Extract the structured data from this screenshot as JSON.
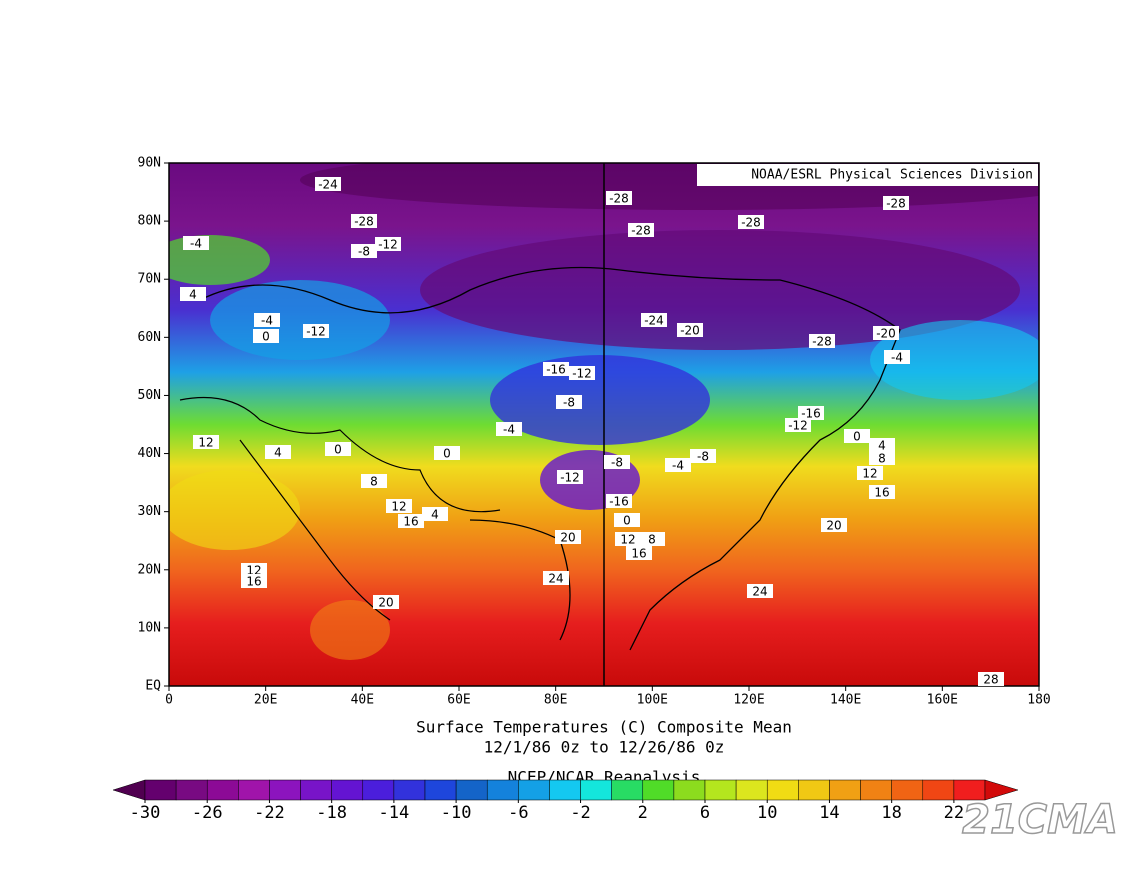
{
  "map": {
    "credit": "NOAA/ESRL Physical Sciences Division",
    "title": "Surface Temperatures (C)   Composite Mean",
    "subtitle": "12/1/86 0z  to 12/26/86 0z",
    "source": "NCEP/NCAR Reanalysis",
    "watermark": "21CMA",
    "lat_labels": [
      "EQ",
      "10N",
      "20N",
      "30N",
      "40N",
      "50N",
      "60N",
      "70N",
      "80N",
      "90N"
    ],
    "lon_labels": [
      "0",
      "20E",
      "40E",
      "60E",
      "80E",
      "100E",
      "120E",
      "140E",
      "160E",
      "180"
    ],
    "contour_labels": [
      -24,
      -28,
      -28,
      -28,
      -28,
      -28,
      -4,
      -8,
      -12,
      4,
      -4,
      0,
      -12,
      -24,
      -20,
      -28,
      -20,
      -4,
      -16,
      -12,
      -8,
      -4,
      -16,
      -12,
      0,
      4,
      8,
      12,
      16,
      12,
      4,
      0,
      0,
      -8,
      -4,
      -8,
      -12,
      8,
      12,
      16,
      4,
      -16,
      0,
      12,
      8,
      16,
      20,
      20,
      12,
      16,
      24,
      24,
      20,
      28
    ],
    "colorbar": {
      "levels": [
        -30,
        -28,
        -26,
        -24,
        -22,
        -20,
        -18,
        -16,
        -14,
        -12,
        -10,
        -8,
        -6,
        -4,
        -2,
        0,
        2,
        4,
        6,
        8,
        10,
        12,
        14,
        16,
        18,
        20,
        22,
        24
      ],
      "ticks": [
        -30,
        -26,
        -22,
        -18,
        -14,
        -10,
        -6,
        -2,
        2,
        6,
        10,
        14,
        18,
        22
      ],
      "colors": [
        "#500050",
        "#64006e",
        "#780a82",
        "#8c0a96",
        "#a014aa",
        "#8c14be",
        "#7814c8",
        "#6414d2",
        "#4b1edc",
        "#3232dc",
        "#1e46dc",
        "#1464c8",
        "#1482dc",
        "#14a0e6",
        "#14c8f0",
        "#14e6dc",
        "#28dc64",
        "#50dc28",
        "#8cdc1e",
        "#b4e61e",
        "#dce61e",
        "#f0dc14",
        "#f0c814",
        "#f0a014",
        "#f08214",
        "#f06414",
        "#f04614",
        "#f01e1e",
        "#d20a0a"
      ]
    }
  }
}
